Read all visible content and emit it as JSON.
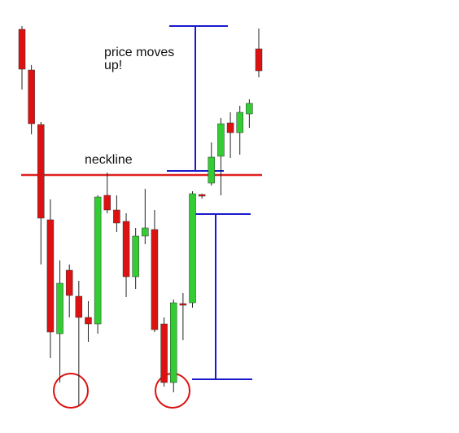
{
  "chart_data": {
    "type": "candlestick",
    "ylim": [
      0,
      500
    ],
    "up_color": "#33cc33",
    "down_color": "#dd1111",
    "neckline": {
      "label": "neckline",
      "value": 305,
      "color": "#e02020"
    },
    "annotations": [
      "price moves up!"
    ],
    "candles": [
      {
        "open": 484,
        "high": 488,
        "low": 410,
        "close": 435
      },
      {
        "open": 434,
        "high": 440,
        "low": 355,
        "close": 368
      },
      {
        "open": 367,
        "high": 370,
        "low": 195,
        "close": 252
      },
      {
        "open": 250,
        "high": 275,
        "low": 80,
        "close": 112
      },
      {
        "open": 110,
        "high": 200,
        "low": 50,
        "close": 172
      },
      {
        "open": 188,
        "high": 195,
        "low": 130,
        "close": 157
      },
      {
        "open": 156,
        "high": 175,
        "low": 22,
        "close": 130
      },
      {
        "open": 130,
        "high": 150,
        "low": 100,
        "close": 122
      },
      {
        "open": 122,
        "high": 280,
        "low": 110,
        "close": 278
      },
      {
        "open": 280,
        "high": 308,
        "low": 258,
        "close": 262
      },
      {
        "open": 262,
        "high": 280,
        "low": 235,
        "close": 246
      },
      {
        "open": 248,
        "high": 258,
        "low": 155,
        "close": 180
      },
      {
        "open": 180,
        "high": 240,
        "low": 165,
        "close": 230
      },
      {
        "open": 230,
        "high": 288,
        "low": 220,
        "close": 240
      },
      {
        "open": 238,
        "high": 262,
        "low": 112,
        "close": 115
      },
      {
        "open": 122,
        "high": 130,
        "low": 45,
        "close": 50
      },
      {
        "open": 50,
        "high": 152,
        "low": 38,
        "close": 148
      },
      {
        "open": 147,
        "high": 160,
        "low": 102,
        "close": 145
      },
      {
        "open": 148,
        "high": 285,
        "low": 142,
        "close": 282
      },
      {
        "open": 281,
        "high": 282,
        "low": 276,
        "close": 279
      },
      {
        "open": 295,
        "high": 345,
        "low": 292,
        "close": 327
      },
      {
        "open": 328,
        "high": 375,
        "low": 280,
        "close": 368
      },
      {
        "open": 369,
        "high": 382,
        "low": 326,
        "close": 357
      },
      {
        "open": 357,
        "high": 390,
        "low": 330,
        "close": 382
      },
      {
        "open": 380,
        "high": 398,
        "low": 363,
        "close": 393
      },
      {
        "open": 460,
        "high": 485,
        "low": 425,
        "close": 433
      }
    ]
  }
}
